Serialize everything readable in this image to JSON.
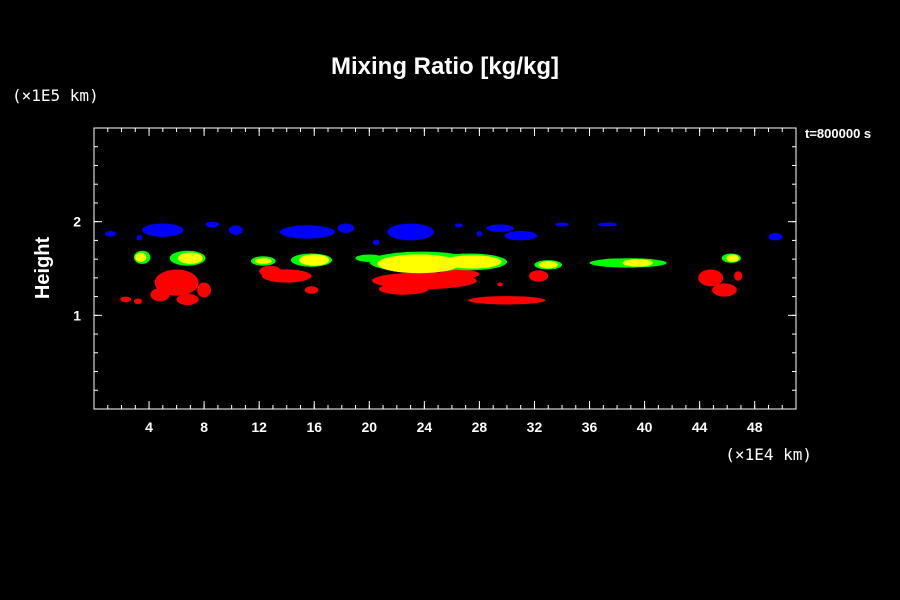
{
  "chart_data": {
    "type": "scatter",
    "title": "Mixing Ratio [kg/kg]",
    "xlabel": "",
    "ylabel": "Height",
    "x_unit": "(×1E4 km)",
    "y_unit": "(×1E5 km)",
    "time_label": "t=800000 s",
    "xlim": [
      0,
      51
    ],
    "ylim": [
      0,
      3
    ],
    "x_ticks": [
      4,
      8,
      12,
      16,
      20,
      24,
      28,
      32,
      36,
      40,
      44,
      48
    ],
    "y_ticks": [
      1,
      2
    ],
    "x_minor_step": 1,
    "y_minor_step": 0.2,
    "grid": false,
    "levels": [
      {
        "color": "#ff0000",
        "blobs": [
          {
            "x": 2.3,
            "y": 1.17,
            "rx": 0.4,
            "ry": 0.03
          },
          {
            "x": 3.2,
            "y": 1.15,
            "rx": 0.3,
            "ry": 0.03
          },
          {
            "x": 6.0,
            "y": 1.35,
            "rx": 1.6,
            "ry": 0.14
          },
          {
            "x": 4.8,
            "y": 1.22,
            "rx": 0.7,
            "ry": 0.07
          },
          {
            "x": 6.8,
            "y": 1.17,
            "rx": 0.8,
            "ry": 0.06
          },
          {
            "x": 8.0,
            "y": 1.27,
            "rx": 0.5,
            "ry": 0.08
          },
          {
            "x": 14.0,
            "y": 1.42,
            "rx": 1.8,
            "ry": 0.07
          },
          {
            "x": 12.8,
            "y": 1.47,
            "rx": 0.8,
            "ry": 0.06
          },
          {
            "x": 15.8,
            "y": 1.27,
            "rx": 0.5,
            "ry": 0.04
          },
          {
            "x": 24.0,
            "y": 1.37,
            "rx": 3.8,
            "ry": 0.09
          },
          {
            "x": 22.5,
            "y": 1.28,
            "rx": 1.8,
            "ry": 0.06
          },
          {
            "x": 26.5,
            "y": 1.44,
            "rx": 1.5,
            "ry": 0.05
          },
          {
            "x": 30.0,
            "y": 1.16,
            "rx": 2.8,
            "ry": 0.045
          },
          {
            "x": 29.5,
            "y": 1.33,
            "rx": 0.2,
            "ry": 0.02
          },
          {
            "x": 32.3,
            "y": 1.42,
            "rx": 0.7,
            "ry": 0.06
          },
          {
            "x": 44.8,
            "y": 1.4,
            "rx": 0.9,
            "ry": 0.09
          },
          {
            "x": 45.8,
            "y": 1.27,
            "rx": 0.9,
            "ry": 0.07
          },
          {
            "x": 46.8,
            "y": 1.42,
            "rx": 0.3,
            "ry": 0.05
          }
        ]
      },
      {
        "color": "#00ff00",
        "blobs": [
          {
            "x": 3.5,
            "y": 1.62,
            "rx": 0.6,
            "ry": 0.07
          },
          {
            "x": 6.8,
            "y": 1.61,
            "rx": 1.3,
            "ry": 0.08
          },
          {
            "x": 12.3,
            "y": 1.58,
            "rx": 0.9,
            "ry": 0.05
          },
          {
            "x": 15.8,
            "y": 1.59,
            "rx": 1.5,
            "ry": 0.07
          },
          {
            "x": 20.0,
            "y": 1.61,
            "rx": 1.0,
            "ry": 0.04
          },
          {
            "x": 23.8,
            "y": 1.57,
            "rx": 3.8,
            "ry": 0.11
          },
          {
            "x": 27.3,
            "y": 1.57,
            "rx": 2.7,
            "ry": 0.09
          },
          {
            "x": 33.0,
            "y": 1.54,
            "rx": 1.0,
            "ry": 0.05
          },
          {
            "x": 38.8,
            "y": 1.56,
            "rx": 2.8,
            "ry": 0.05
          },
          {
            "x": 46.3,
            "y": 1.61,
            "rx": 0.7,
            "ry": 0.05
          }
        ]
      },
      {
        "color": "#ffff00",
        "blobs": [
          {
            "x": 3.4,
            "y": 1.62,
            "rx": 0.4,
            "ry": 0.05
          },
          {
            "x": 7.0,
            "y": 1.61,
            "rx": 0.9,
            "ry": 0.06
          },
          {
            "x": 12.3,
            "y": 1.58,
            "rx": 0.6,
            "ry": 0.03
          },
          {
            "x": 16.0,
            "y": 1.59,
            "rx": 1.1,
            "ry": 0.06
          },
          {
            "x": 23.6,
            "y": 1.55,
            "rx": 3.0,
            "ry": 0.1
          },
          {
            "x": 27.5,
            "y": 1.57,
            "rx": 2.1,
            "ry": 0.07
          },
          {
            "x": 33.0,
            "y": 1.54,
            "rx": 0.7,
            "ry": 0.04
          },
          {
            "x": 39.5,
            "y": 1.56,
            "rx": 1.1,
            "ry": 0.04
          },
          {
            "x": 46.4,
            "y": 1.61,
            "rx": 0.45,
            "ry": 0.04
          }
        ]
      },
      {
        "color": "#0000ff",
        "blobs": [
          {
            "x": 1.2,
            "y": 1.87,
            "rx": 0.4,
            "ry": 0.03
          },
          {
            "x": 5.0,
            "y": 1.91,
            "rx": 1.5,
            "ry": 0.07
          },
          {
            "x": 3.3,
            "y": 1.83,
            "rx": 0.2,
            "ry": 0.03
          },
          {
            "x": 8.6,
            "y": 1.97,
            "rx": 0.5,
            "ry": 0.03
          },
          {
            "x": 10.3,
            "y": 1.91,
            "rx": 0.5,
            "ry": 0.05
          },
          {
            "x": 15.5,
            "y": 1.89,
            "rx": 2.0,
            "ry": 0.07
          },
          {
            "x": 18.3,
            "y": 1.93,
            "rx": 0.6,
            "ry": 0.05
          },
          {
            "x": 20.5,
            "y": 1.78,
            "rx": 0.25,
            "ry": 0.03
          },
          {
            "x": 23.0,
            "y": 1.89,
            "rx": 1.7,
            "ry": 0.09
          },
          {
            "x": 26.5,
            "y": 1.96,
            "rx": 0.3,
            "ry": 0.02
          },
          {
            "x": 28.0,
            "y": 1.87,
            "rx": 0.2,
            "ry": 0.03
          },
          {
            "x": 29.5,
            "y": 1.93,
            "rx": 1.0,
            "ry": 0.04
          },
          {
            "x": 31.0,
            "y": 1.85,
            "rx": 1.2,
            "ry": 0.05
          },
          {
            "x": 34.0,
            "y": 1.97,
            "rx": 0.5,
            "ry": 0.02
          },
          {
            "x": 37.3,
            "y": 1.97,
            "rx": 0.7,
            "ry": 0.02
          },
          {
            "x": 49.5,
            "y": 1.84,
            "rx": 0.5,
            "ry": 0.04
          }
        ]
      }
    ]
  }
}
